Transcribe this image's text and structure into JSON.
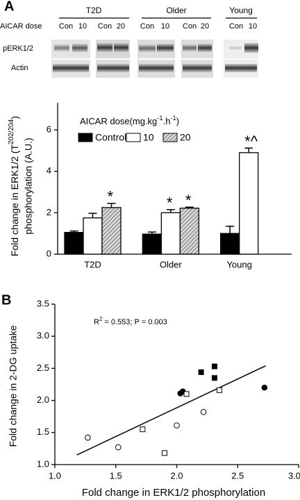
{
  "blot": {
    "panel_label": "A",
    "groups": [
      "T2D",
      "Older",
      "Young"
    ],
    "dose_label": "AICAR dose",
    "lanes": [
      "Con",
      "10",
      "Con",
      "20",
      "Con",
      "10",
      "Con",
      "20",
      "Con",
      "10"
    ],
    "rows": [
      "pERK1/2",
      "Actin"
    ]
  },
  "chart_data": [
    {
      "type": "bar",
      "ylabel": [
        "Fold change in ERK1/2 (T",
        "202/204",
        ")",
        "phosphorylation (A.U.)"
      ],
      "legend_title": [
        "AICAR dose(mg.kg",
        "-1",
        ".h",
        "-1",
        ")"
      ],
      "categories": [
        "T2D",
        "Older",
        "Young"
      ],
      "series": [
        {
          "name": "Control",
          "color": "#000000",
          "values": [
            1.05,
            0.97,
            1.0
          ],
          "errors": [
            0.07,
            0.1,
            0.35
          ],
          "markers": [
            null,
            null,
            null
          ]
        },
        {
          "name": "10",
          "color": "#ffffff",
          "values": [
            1.75,
            2.0,
            4.9
          ],
          "errors": [
            0.22,
            0.15,
            0.22
          ],
          "markers": [
            null,
            "*",
            "*^"
          ]
        },
        {
          "name": "20",
          "color": "#9a9a9a",
          "pattern": "diagonal",
          "values": [
            2.25,
            2.22,
            null
          ],
          "errors": [
            0.2,
            0.05,
            null
          ],
          "markers": [
            "*",
            "*",
            null
          ]
        }
      ],
      "ylim": [
        0,
        7.3
      ],
      "yticks": [
        0,
        2,
        4,
        6
      ]
    },
    {
      "type": "scatter",
      "panel_label": "B",
      "xlabel": "Fold change in ERK1/2 phosphorylation",
      "ylabel": "Fold change in 2-DG uptake",
      "annotation": [
        "R",
        "2",
        " = 0.553; P = 0.003"
      ],
      "series": [
        {
          "marker": "square",
          "filled": true,
          "color": "#000000",
          "x": [
            2.2,
            2.31,
            2.31
          ],
          "values": [
            2.44,
            2.53,
            2.35
          ]
        },
        {
          "marker": "circle",
          "filled": true,
          "color": "#000000",
          "x": [
            2.03,
            2.05,
            2.72
          ],
          "values": [
            2.11,
            2.14,
            2.2
          ]
        },
        {
          "marker": "square",
          "filled": false,
          "color": "#000000",
          "x": [
            2.08,
            2.35,
            1.72,
            1.9
          ],
          "values": [
            2.1,
            2.16,
            1.55,
            1.18
          ]
        },
        {
          "marker": "circle",
          "filled": false,
          "color": "#000000",
          "x": [
            1.27,
            1.52,
            2.0,
            2.22
          ],
          "values": [
            1.42,
            1.27,
            1.61,
            1.82
          ]
        }
      ],
      "trendline": {
        "x": [
          1.18,
          2.73
        ],
        "y": [
          1.15,
          2.54
        ]
      },
      "xlim": [
        1.0,
        3.0
      ],
      "xticks": [
        {
          "value": 1,
          "label": "1.0"
        },
        1.5,
        {
          "value": 2,
          "label": "2.0"
        },
        2.5,
        {
          "value": 3,
          "label": "3.0"
        }
      ],
      "ylim": [
        1.0,
        3.5
      ],
      "yticks": [
        {
          "value": 1,
          "label": "1.0"
        },
        1.5,
        {
          "value": 2,
          "label": "2.0"
        },
        2.5,
        {
          "value": 3,
          "label": "3.0"
        },
        3.5
      ]
    }
  ]
}
